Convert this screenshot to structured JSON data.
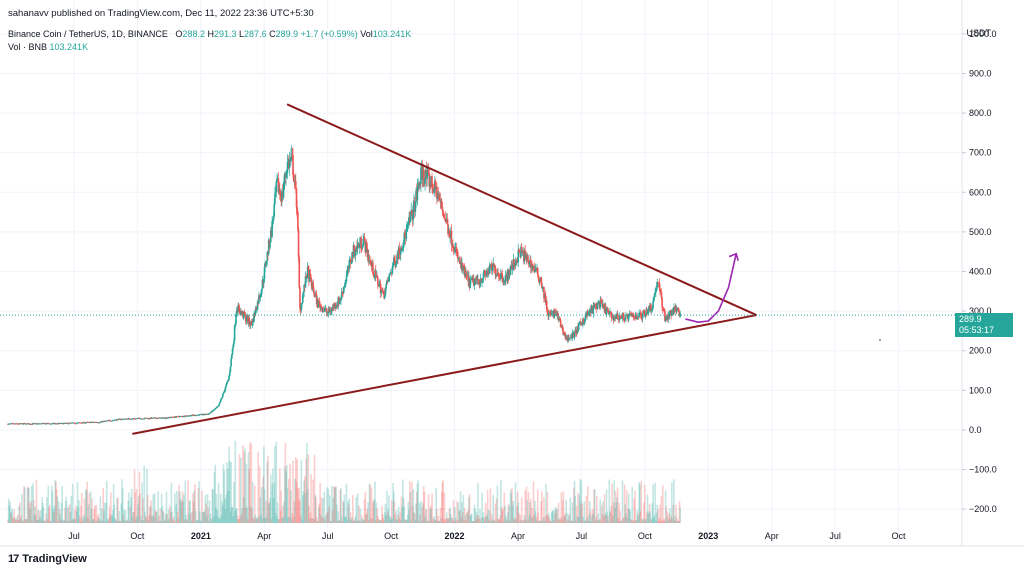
{
  "publisher": "sahanavv published on TradingView.com, Dec 11, 2022 23:36 UTC+5:30",
  "legend": {
    "symbol": "Binance Coin / TetherUS, 1D, BINANCE",
    "o_label": "O",
    "o_value": "288.2",
    "h_label": "H",
    "h_value": "291.3",
    "l_label": "L",
    "l_value": "287.6",
    "c_label": "C",
    "c_value": "289.9",
    "change": "+1.7 (+0.59%)",
    "vol_label": "Vol",
    "vol_value": "103.241K",
    "vol2_label": "Vol · BNB",
    "vol2_value": "103.241K"
  },
  "axis_currency": "USDT",
  "price_tag": {
    "value": "289.9",
    "countdown": "05:53:17"
  },
  "brand": {
    "name": "TradingView",
    "logo": "17"
  },
  "colors": {
    "up": "#26a69a",
    "down": "#ef5350",
    "trendline": "#8b1a1a",
    "arrow": "#9c27b0",
    "grid": "#f0f3fa"
  },
  "chart_data": {
    "type": "candlestick",
    "title": "Binance Coin / TetherUS, 1D, BINANCE",
    "ylabel": "USDT",
    "ylim": [
      -235,
      1040
    ],
    "y_ticks": [
      1000,
      900,
      800,
      700,
      600,
      500,
      400,
      300,
      200,
      100,
      0,
      -100,
      -200
    ],
    "y_tick_labels": [
      "1000.0",
      "900.0",
      "800.0",
      "700.0",
      "600.0",
      "500.0",
      "400.0",
      "300.0",
      "200.0",
      "100.0",
      "0.0",
      "−100.0",
      "−200.0"
    ],
    "x_ticks": [
      2020.5,
      2020.75,
      2021.0,
      2021.25,
      2021.5,
      2021.75,
      2022.0,
      2022.25,
      2022.5,
      2022.75,
      2023.0,
      2023.25,
      2023.5,
      2023.75
    ],
    "x_tick_labels": [
      "Jul",
      "Oct",
      "2021",
      "Apr",
      "Jul",
      "Oct",
      "2022",
      "Apr",
      "Jul",
      "Oct",
      "2023",
      "Apr",
      "Jul",
      "Oct"
    ],
    "x_range": [
      2020.24,
      2024.0
    ],
    "price_path": [
      [
        2020.24,
        15
      ],
      [
        2020.45,
        16
      ],
      [
        2020.6,
        20
      ],
      [
        2020.68,
        27
      ],
      [
        2020.75,
        29
      ],
      [
        2020.85,
        30
      ],
      [
        2020.95,
        36
      ],
      [
        2021.03,
        40
      ],
      [
        2021.07,
        60
      ],
      [
        2021.11,
        130
      ],
      [
        2021.13,
        230
      ],
      [
        2021.14,
        310
      ],
      [
        2021.2,
        265
      ],
      [
        2021.24,
        360
      ],
      [
        2021.28,
        510
      ],
      [
        2021.3,
        620
      ],
      [
        2021.32,
        590
      ],
      [
        2021.34,
        670
      ],
      [
        2021.36,
        680
      ],
      [
        2021.38,
        560
      ],
      [
        2021.39,
        300
      ],
      [
        2021.42,
        400
      ],
      [
        2021.46,
        320
      ],
      [
        2021.5,
        295
      ],
      [
        2021.55,
        330
      ],
      [
        2021.6,
        450
      ],
      [
        2021.64,
        480
      ],
      [
        2021.68,
        400
      ],
      [
        2021.72,
        340
      ],
      [
        2021.76,
        420
      ],
      [
        2021.8,
        480
      ],
      [
        2021.84,
        560
      ],
      [
        2021.87,
        650
      ],
      [
        2021.9,
        630
      ],
      [
        2021.93,
        600
      ],
      [
        2021.97,
        520
      ],
      [
        2022.02,
        420
      ],
      [
        2022.06,
        370
      ],
      [
        2022.1,
        380
      ],
      [
        2022.15,
        410
      ],
      [
        2022.2,
        380
      ],
      [
        2022.26,
        450
      ],
      [
        2022.3,
        420
      ],
      [
        2022.34,
        380
      ],
      [
        2022.37,
        290
      ],
      [
        2022.4,
        295
      ],
      [
        2022.44,
        230
      ],
      [
        2022.47,
        240
      ],
      [
        2022.52,
        290
      ],
      [
        2022.57,
        320
      ],
      [
        2022.62,
        285
      ],
      [
        2022.68,
        285
      ],
      [
        2022.74,
        290
      ],
      [
        2022.78,
        315
      ],
      [
        2022.8,
        380
      ],
      [
        2022.83,
        280
      ],
      [
        2022.86,
        300
      ],
      [
        2022.88,
        305
      ],
      [
        2022.89,
        289.9
      ]
    ],
    "trendlines": [
      {
        "name": "upper-trendline",
        "from": [
          2021.34,
          822
        ],
        "to": [
          2023.19,
          290
        ]
      },
      {
        "name": "lower-trendline",
        "from": [
          2020.73,
          -10
        ],
        "to": [
          2023.19,
          290
        ]
      }
    ],
    "projection": {
      "name": "breakout-arrow",
      "points": [
        [
          2022.91,
          280
        ],
        [
          2022.96,
          272
        ],
        [
          2023.0,
          275
        ],
        [
          2023.04,
          300
        ],
        [
          2023.08,
          360
        ],
        [
          2023.11,
          445
        ]
      ]
    },
    "last_price": 289.9,
    "volume_ylim": [
      0,
      230000
    ],
    "volume_range": [
      5000,
      200000
    ]
  }
}
